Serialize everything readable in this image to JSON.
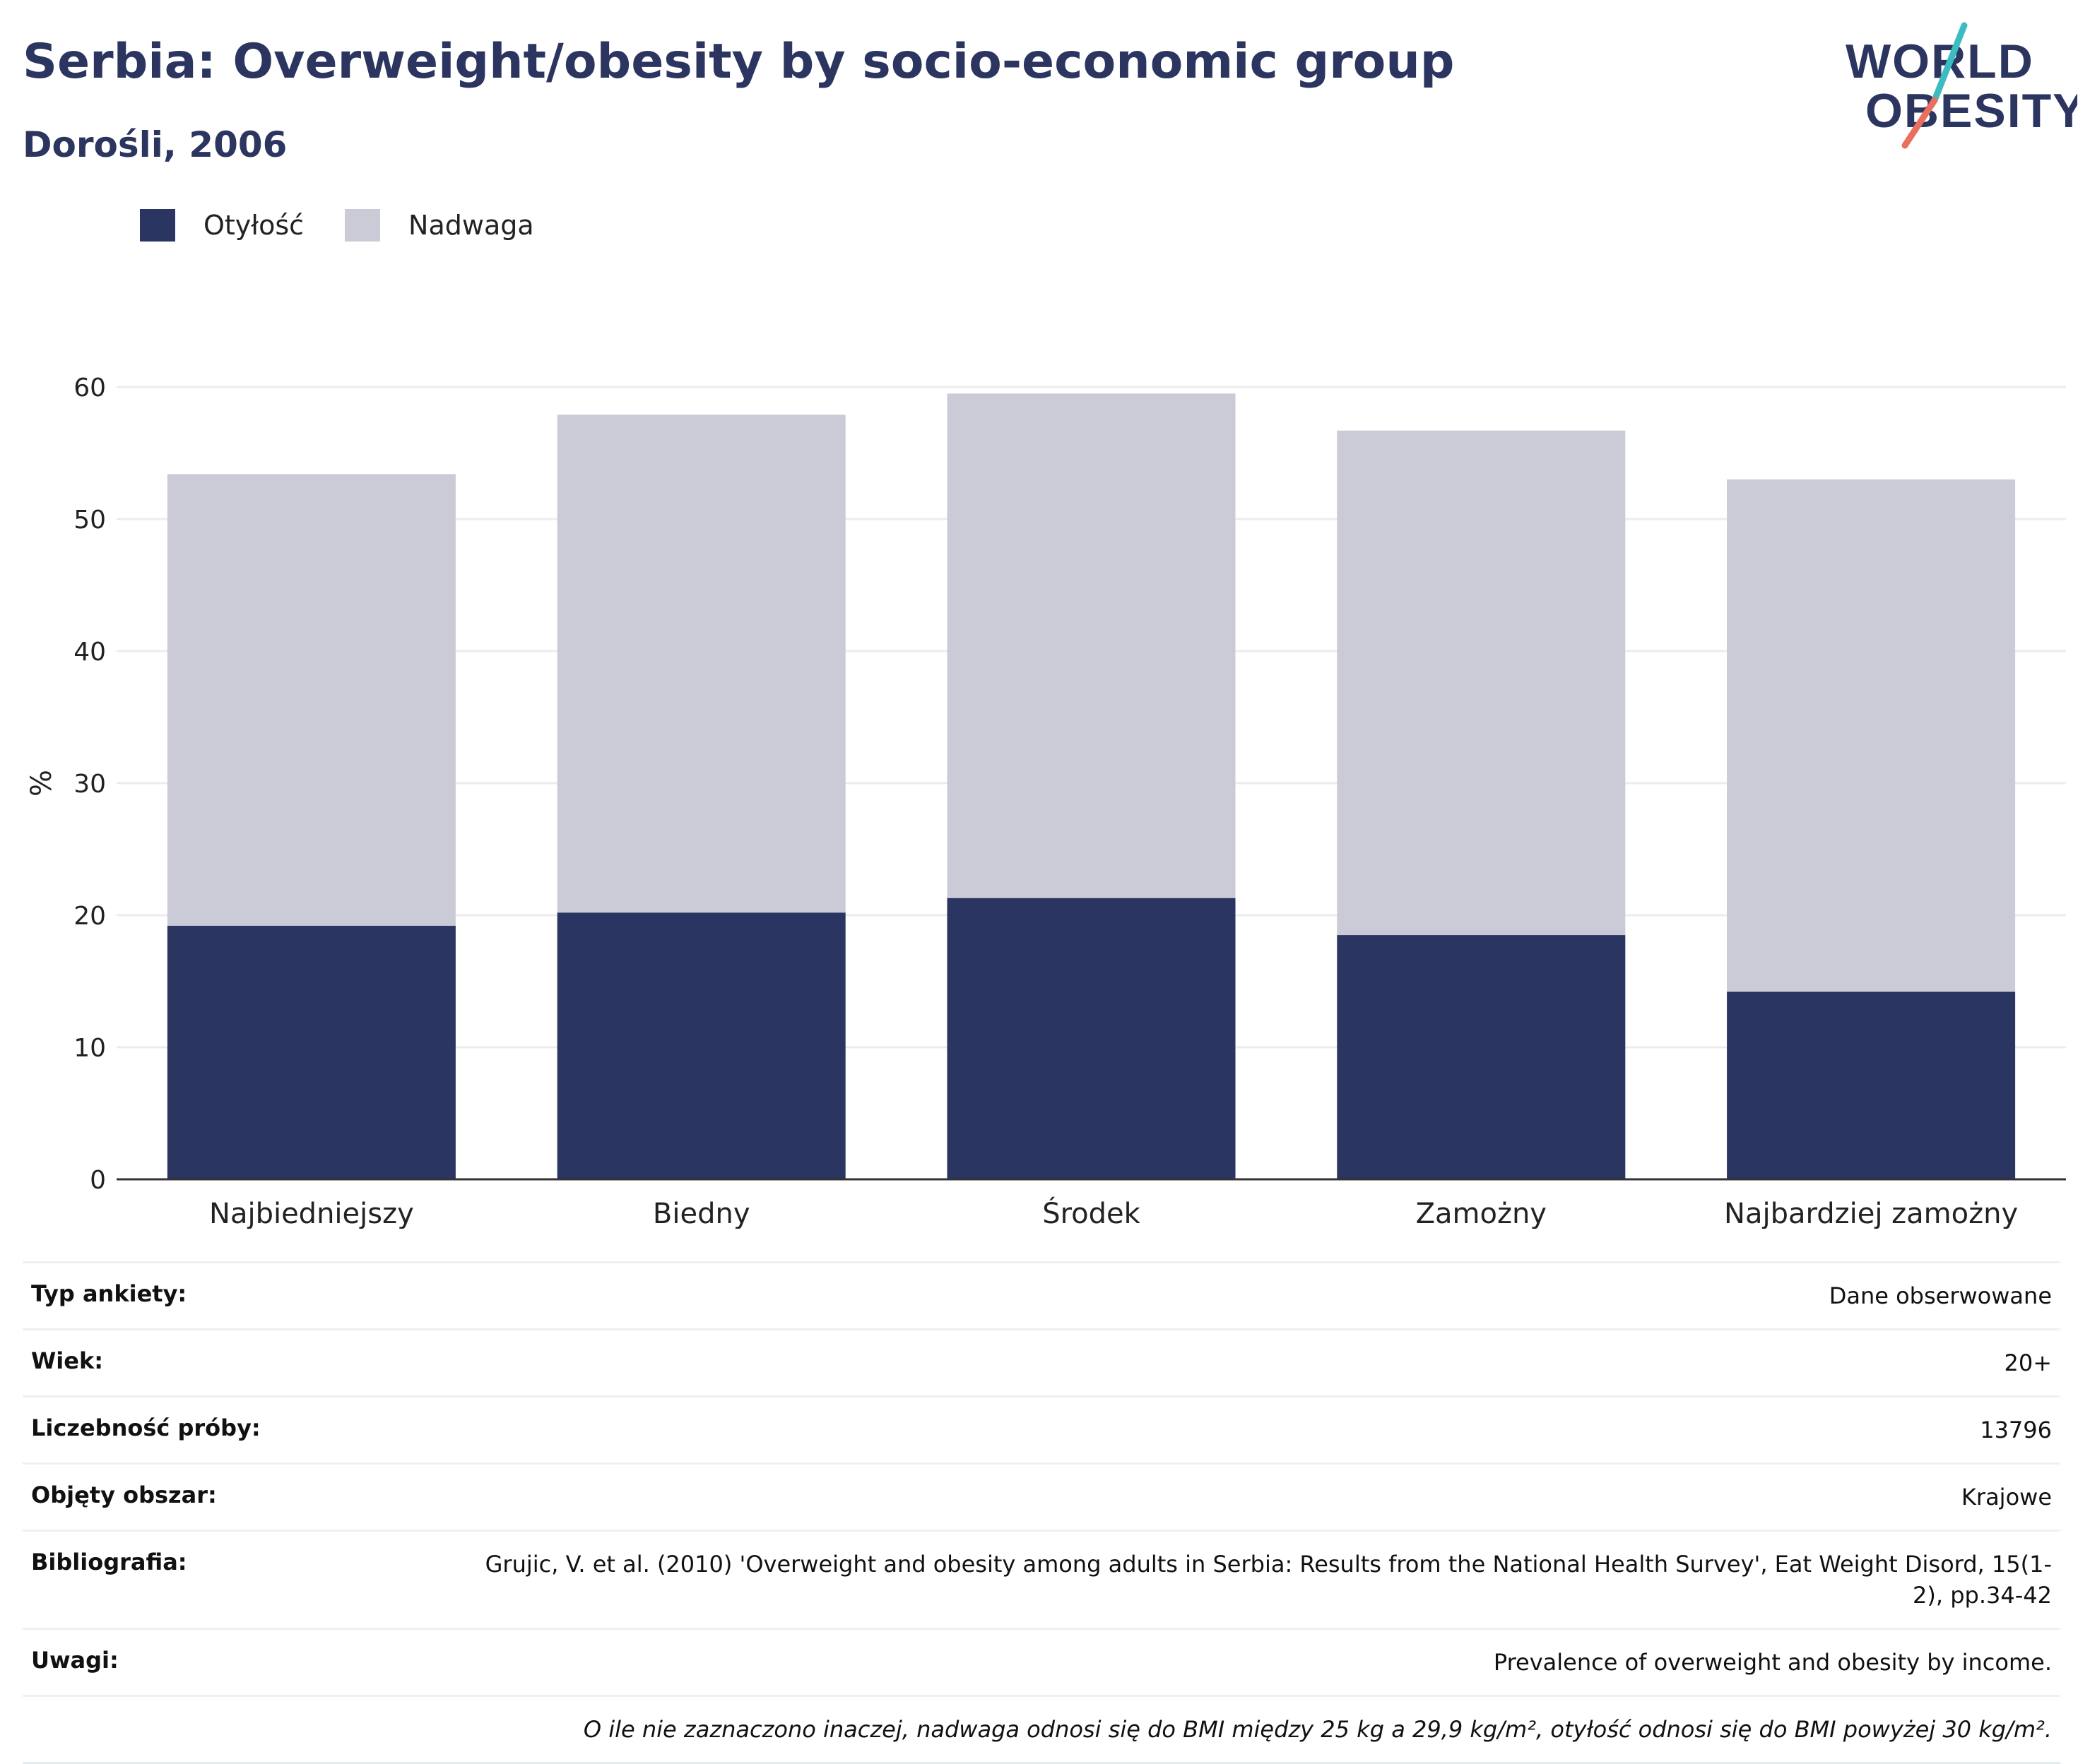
{
  "header": {
    "title": "Serbia: Overweight/obesity by socio-economic group",
    "subtitle": "Dorośli, 2006",
    "logo": {
      "line1": "WORLD",
      "line2": "OBESITY"
    }
  },
  "colors": {
    "obesity": "#2a3561",
    "overweight": "#cacbd7",
    "grid": "#ececec",
    "axis": "#333333",
    "logo_text": "#2b3560",
    "logo_teal": "#3bbcc1",
    "logo_red": "#e8705f"
  },
  "chart_data": {
    "type": "bar",
    "stacked": true,
    "title": "Serbia: Overweight/obesity by socio-economic group",
    "subtitle": "Dorośli, 2006",
    "xlabel": "",
    "ylabel": "%",
    "ylim": [
      0,
      60
    ],
    "yticks": [
      0,
      10,
      20,
      30,
      40,
      50,
      60
    ],
    "grid": true,
    "legend_position": "top-left",
    "categories": [
      "Najbiedniejszy",
      "Biedny",
      "Środek",
      "Zamożny",
      "Najbardziej zamożny"
    ],
    "series": [
      {
        "name": "Otyłość",
        "values": [
          19.2,
          20.2,
          21.3,
          18.5,
          14.2
        ]
      },
      {
        "name": "Nadwaga",
        "values": [
          34.2,
          37.7,
          38.2,
          38.2,
          38.8
        ]
      }
    ]
  },
  "info": [
    {
      "key": "Typ ankiety:",
      "value": "Dane obserwowane"
    },
    {
      "key": "Wiek:",
      "value": "20+"
    },
    {
      "key": "Liczebność próby:",
      "value": "13796"
    },
    {
      "key": "Objęty obszar:",
      "value": "Krajowe"
    },
    {
      "key": "Bibliografia:",
      "value": "Grujic, V. et al. (2010) 'Overweight and obesity among adults in Serbia: Results from the National Health Survey', Eat Weight Disord, 15(1-2), pp.34-42"
    },
    {
      "key": "Uwagi:",
      "value": "Prevalence of overweight and obesity by income."
    }
  ],
  "footnote": "O ile nie zaznaczono inaczej, nadwaga odnosi się do BMI między 25 kg a 29,9 kg/m², otyłość odnosi się do BMI powyżej 30 kg/m²."
}
